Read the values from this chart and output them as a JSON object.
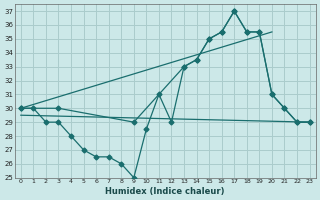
{
  "xlabel": "Humidex (Indice chaleur)",
  "bg_color": "#cce8e8",
  "grid_color": "#aacccc",
  "line_color": "#1a6e6e",
  "line1_x": [
    0,
    1,
    2,
    3,
    4,
    5,
    6,
    7,
    8,
    9,
    10,
    11,
    12,
    13,
    14,
    15,
    16,
    17,
    18,
    19,
    20,
    21,
    22,
    23
  ],
  "line1_y": [
    30,
    30,
    29,
    29,
    28,
    27,
    26.5,
    26.5,
    26,
    25,
    28.5,
    31,
    29,
    33,
    33.5,
    35,
    35.5,
    37,
    35.5,
    35.5,
    31,
    30,
    29,
    29
  ],
  "line2_x": [
    0,
    23
  ],
  "line2_y": [
    29.5,
    29
  ],
  "line3_x": [
    0,
    3,
    9,
    13,
    14,
    15,
    16,
    17,
    18,
    19,
    20,
    21,
    22,
    23
  ],
  "line3_y": [
    30,
    30,
    29,
    33,
    33.5,
    35,
    35.5,
    37,
    35.5,
    35.5,
    31,
    30,
    29,
    29
  ],
  "trend_x": [
    0,
    20
  ],
  "trend_y": [
    30,
    35.5
  ],
  "ylim": [
    25,
    37.5
  ],
  "xlim": [
    -0.5,
    23.5
  ],
  "yticks": [
    25,
    26,
    27,
    28,
    29,
    30,
    31,
    32,
    33,
    34,
    35,
    36,
    37
  ],
  "xticks": [
    0,
    1,
    2,
    3,
    4,
    5,
    6,
    7,
    8,
    9,
    10,
    11,
    12,
    13,
    14,
    15,
    16,
    17,
    18,
    19,
    20,
    21,
    22,
    23
  ]
}
